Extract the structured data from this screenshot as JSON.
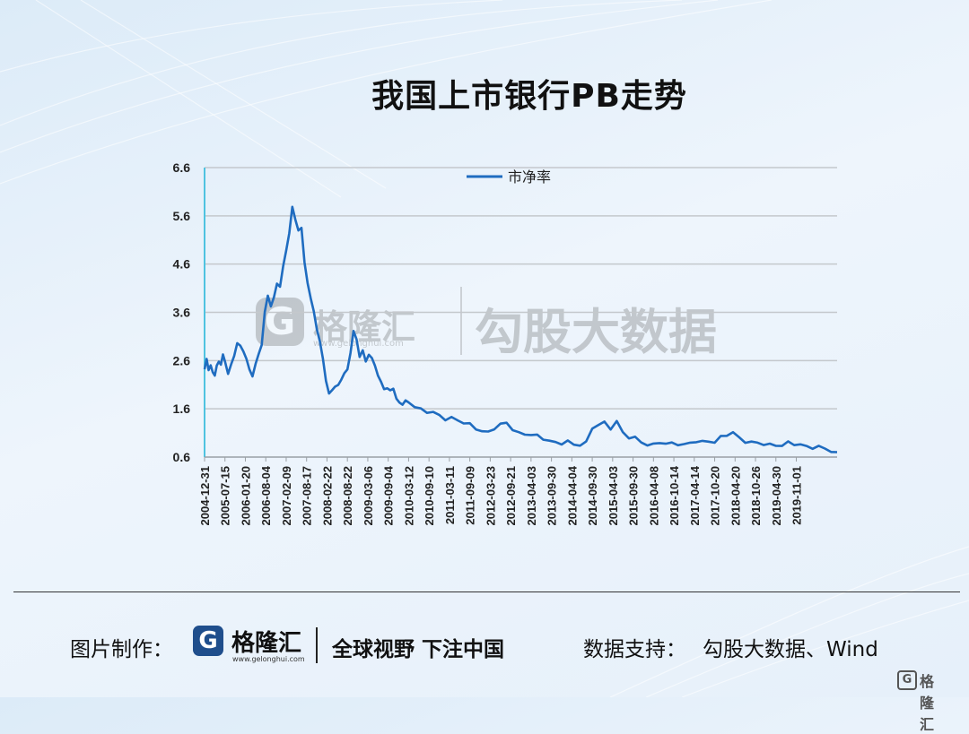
{
  "title": "我国上市银行PB走势",
  "chart_data": {
    "type": "line",
    "title": "",
    "xlabel": "",
    "ylabel": "",
    "ylim": [
      0.6,
      6.6
    ],
    "yticks": [
      0.6,
      1.6,
      2.6,
      3.6,
      4.6,
      5.6,
      6.6
    ],
    "ytick_labels": [
      "0.6",
      "1.6",
      "2.6",
      "3.6",
      "4.6",
      "5.6",
      "6.6"
    ],
    "grid": true,
    "legend_position": "top-center",
    "line_color": "#1f6cc0",
    "axis_color": "#4fc3e0",
    "categories": [
      "2004-12-31",
      "2005-07-15",
      "2006-01-20",
      "2006-08-04",
      "2007-02-09",
      "2007-08-17",
      "2008-02-22",
      "2008-08-22",
      "2009-03-06",
      "2009-09-04",
      "2010-03-12",
      "2010-09-10",
      "2011-03-11",
      "2011-09-09",
      "2012-03-23",
      "2012-09-21",
      "2013-04-03",
      "2013-09-30",
      "2014-04-04",
      "2014-09-30",
      "2015-04-03",
      "2015-09-30",
      "2016-04-08",
      "2016-10-14",
      "2017-04-14",
      "2017-10-20",
      "2018-04-20",
      "2018-10-26",
      "2019-04-30",
      "2019-11-01"
    ],
    "series": [
      {
        "name": "市净率",
        "x": [
          0,
          0.1,
          0.2,
          0.3,
          0.4,
          0.5,
          0.6,
          0.7,
          0.8,
          0.9,
          1.0,
          1.15,
          1.3,
          1.45,
          1.6,
          1.75,
          1.9,
          2.05,
          2.2,
          2.35,
          2.5,
          2.65,
          2.8,
          2.95,
          3.1,
          3.25,
          3.4,
          3.55,
          3.7,
          3.85,
          4.0,
          4.15,
          4.3,
          4.45,
          4.6,
          4.75,
          4.9,
          5.05,
          5.2,
          5.35,
          5.5,
          5.65,
          5.8,
          5.95,
          6.1,
          6.25,
          6.4,
          6.55,
          6.7,
          6.85,
          7.0,
          7.15,
          7.3,
          7.45,
          7.6,
          7.75,
          7.9,
          8.05,
          8.2,
          8.35,
          8.5,
          8.65,
          8.8,
          8.95,
          9.1,
          9.25,
          9.4,
          9.55,
          9.7,
          9.85,
          10.0,
          10.3,
          10.6,
          10.9,
          11.2,
          11.5,
          11.8,
          12.1,
          12.4,
          12.7,
          13.0,
          13.3,
          13.6,
          13.9,
          14.2,
          14.5,
          14.8,
          15.1,
          15.4,
          15.7,
          16.0,
          16.3,
          16.6,
          16.9,
          17.2,
          17.5,
          17.8,
          18.1,
          18.4,
          18.7,
          19.0,
          19.3,
          19.6,
          19.9,
          20.2,
          20.5,
          20.8,
          21.1,
          21.4,
          21.7,
          22.0,
          22.3,
          22.6,
          22.9,
          23.2,
          23.5,
          23.8,
          24.1,
          24.4,
          24.7,
          25.0,
          25.3,
          25.6,
          25.9,
          26.2,
          26.5,
          26.8,
          27.1,
          27.4,
          27.7,
          28.0,
          28.3,
          28.6,
          28.9,
          29.2,
          29.5,
          29.8,
          30.1,
          30.4,
          30.7,
          31.0
        ],
        "values": [
          2.4,
          2.6,
          2.45,
          2.5,
          2.35,
          2.3,
          2.45,
          2.6,
          2.55,
          2.7,
          2.6,
          2.3,
          2.5,
          2.75,
          2.95,
          2.9,
          2.8,
          2.6,
          2.45,
          2.3,
          2.5,
          2.75,
          2.9,
          3.6,
          4.0,
          3.7,
          3.9,
          4.2,
          4.1,
          4.6,
          4.9,
          5.2,
          5.8,
          5.5,
          5.3,
          5.4,
          4.6,
          4.2,
          3.9,
          3.6,
          3.3,
          3.0,
          2.6,
          2.2,
          1.9,
          2.0,
          2.1,
          2.05,
          2.2,
          2.35,
          2.4,
          2.8,
          3.2,
          3.0,
          2.7,
          2.8,
          2.6,
          2.75,
          2.6,
          2.5,
          2.3,
          2.15,
          2.05,
          2.0,
          1.95,
          2.05,
          1.8,
          1.75,
          1.7,
          1.72,
          1.75,
          1.65,
          1.6,
          1.55,
          1.5,
          1.45,
          1.4,
          1.42,
          1.38,
          1.3,
          1.25,
          1.2,
          1.15,
          1.12,
          1.2,
          1.25,
          1.3,
          1.2,
          1.1,
          1.08,
          1.05,
          1.02,
          1.0,
          0.95,
          0.9,
          0.88,
          0.9,
          0.86,
          0.88,
          0.9,
          1.2,
          1.25,
          1.3,
          1.22,
          1.35,
          1.1,
          1.0,
          0.98,
          0.92,
          0.88,
          0.85,
          0.9,
          0.86,
          0.88,
          0.9,
          0.86,
          0.88,
          0.92,
          0.9,
          0.95,
          0.93,
          1.0,
          1.05,
          1.1,
          1.0,
          0.95,
          0.9,
          0.88,
          0.86,
          0.85,
          0.87,
          0.85,
          0.88,
          0.86,
          0.85,
          0.83,
          0.82,
          0.8,
          0.76,
          0.72,
          0.68
        ]
      }
    ]
  },
  "watermark": {
    "g_letter": "G",
    "brand": "格隆汇",
    "url": "www.gelonghui.com",
    "text": "勾股大数据"
  },
  "footer": {
    "label": "图片制作：",
    "logo_letter": "G",
    "brand": "格隆汇",
    "url": "www.gelonghui.com",
    "slogan": "全球视野 下注中国",
    "source_label": "数据支持：",
    "source": "勾股大数据、Wind"
  },
  "corner": {
    "g_letter": "G",
    "text": "格隆汇"
  }
}
